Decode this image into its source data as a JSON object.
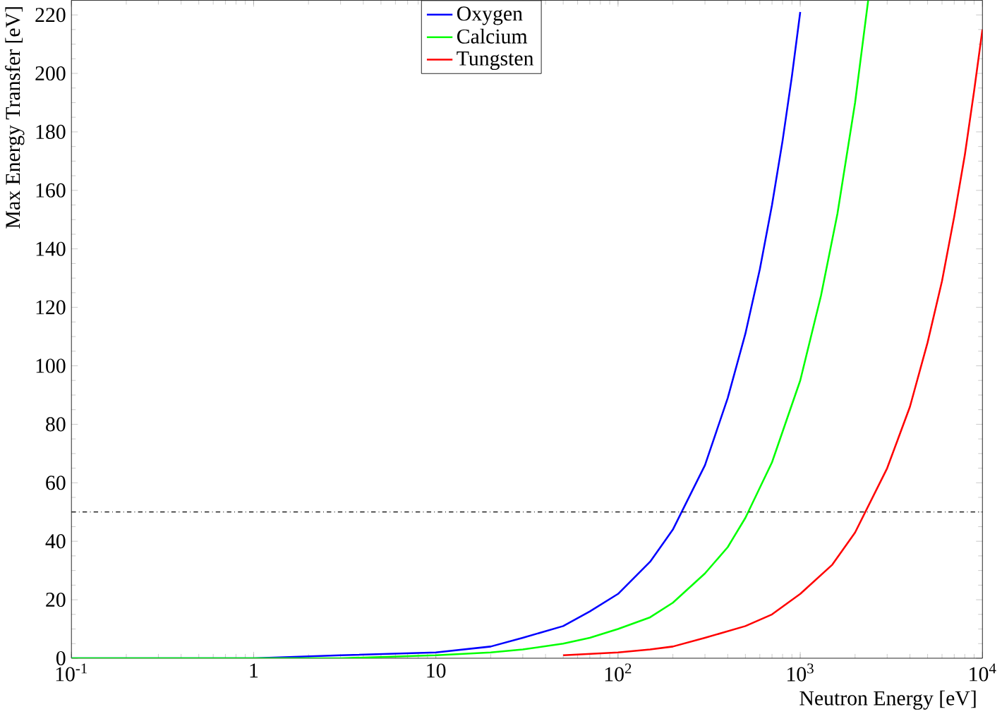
{
  "chart_data": {
    "type": "line",
    "xlabel": "Neutron Energy [eV]",
    "ylabel": "Max Energy Transfer [eV]",
    "log": "x",
    "xlim": [
      0.1,
      10000
    ],
    "ylim": [
      0,
      225
    ],
    "xticks": [
      {
        "value": 0.1,
        "label": "10$^{-1}$"
      },
      {
        "value": 1,
        "label": "1"
      },
      {
        "value": 10,
        "label": "10"
      },
      {
        "value": 100,
        "label": "10$^{2}$"
      },
      {
        "value": 1000,
        "label": "10$^{3}$"
      },
      {
        "value": 10000,
        "label": "10$^{4}$"
      }
    ],
    "yticks": [
      0,
      20,
      40,
      60,
      80,
      100,
      120,
      140,
      160,
      180,
      200,
      220
    ],
    "grid": false,
    "legend": "top",
    "marker": "none",
    "line_style": "solid",
    "series": [
      {
        "name": "Oxygen",
        "color": "#0000ff",
        "x": [
          0.1,
          1,
          3,
          10,
          20,
          30,
          50,
          70,
          100,
          150,
          200,
          300,
          400,
          500,
          600,
          700,
          800,
          900,
          1000
        ],
        "values": [
          0,
          0,
          1,
          2,
          4,
          7,
          11,
          16,
          22,
          33,
          44,
          66,
          89,
          111,
          133,
          155,
          177,
          199,
          221
        ]
      },
      {
        "name": "Calcium",
        "color": "#00ff00",
        "x": [
          0.1,
          3,
          10,
          20,
          30,
          50,
          70,
          100,
          150,
          200,
          300,
          400,
          500,
          700,
          1000,
          1300,
          1600,
          2000,
          2360
        ],
        "values": [
          0,
          0,
          1,
          2,
          3,
          5,
          7,
          10,
          14,
          19,
          29,
          38,
          48,
          67,
          95,
          124,
          152,
          190,
          225
        ]
      },
      {
        "name": "Tungsten",
        "color": "#ff0000",
        "x": [
          50,
          100,
          150,
          200,
          300,
          500,
          700,
          1000,
          1500,
          2000,
          3000,
          4000,
          5000,
          6000,
          7000,
          8000,
          9000,
          10000
        ],
        "values": [
          1,
          2,
          3,
          4,
          7,
          11,
          15,
          22,
          32,
          43,
          65,
          86,
          108,
          129,
          151,
          172,
          194,
          215
        ]
      }
    ],
    "ref_lines": [
      {
        "axis": "y",
        "value": 50,
        "color": "#000000",
        "line_style": "dashdot"
      }
    ]
  }
}
